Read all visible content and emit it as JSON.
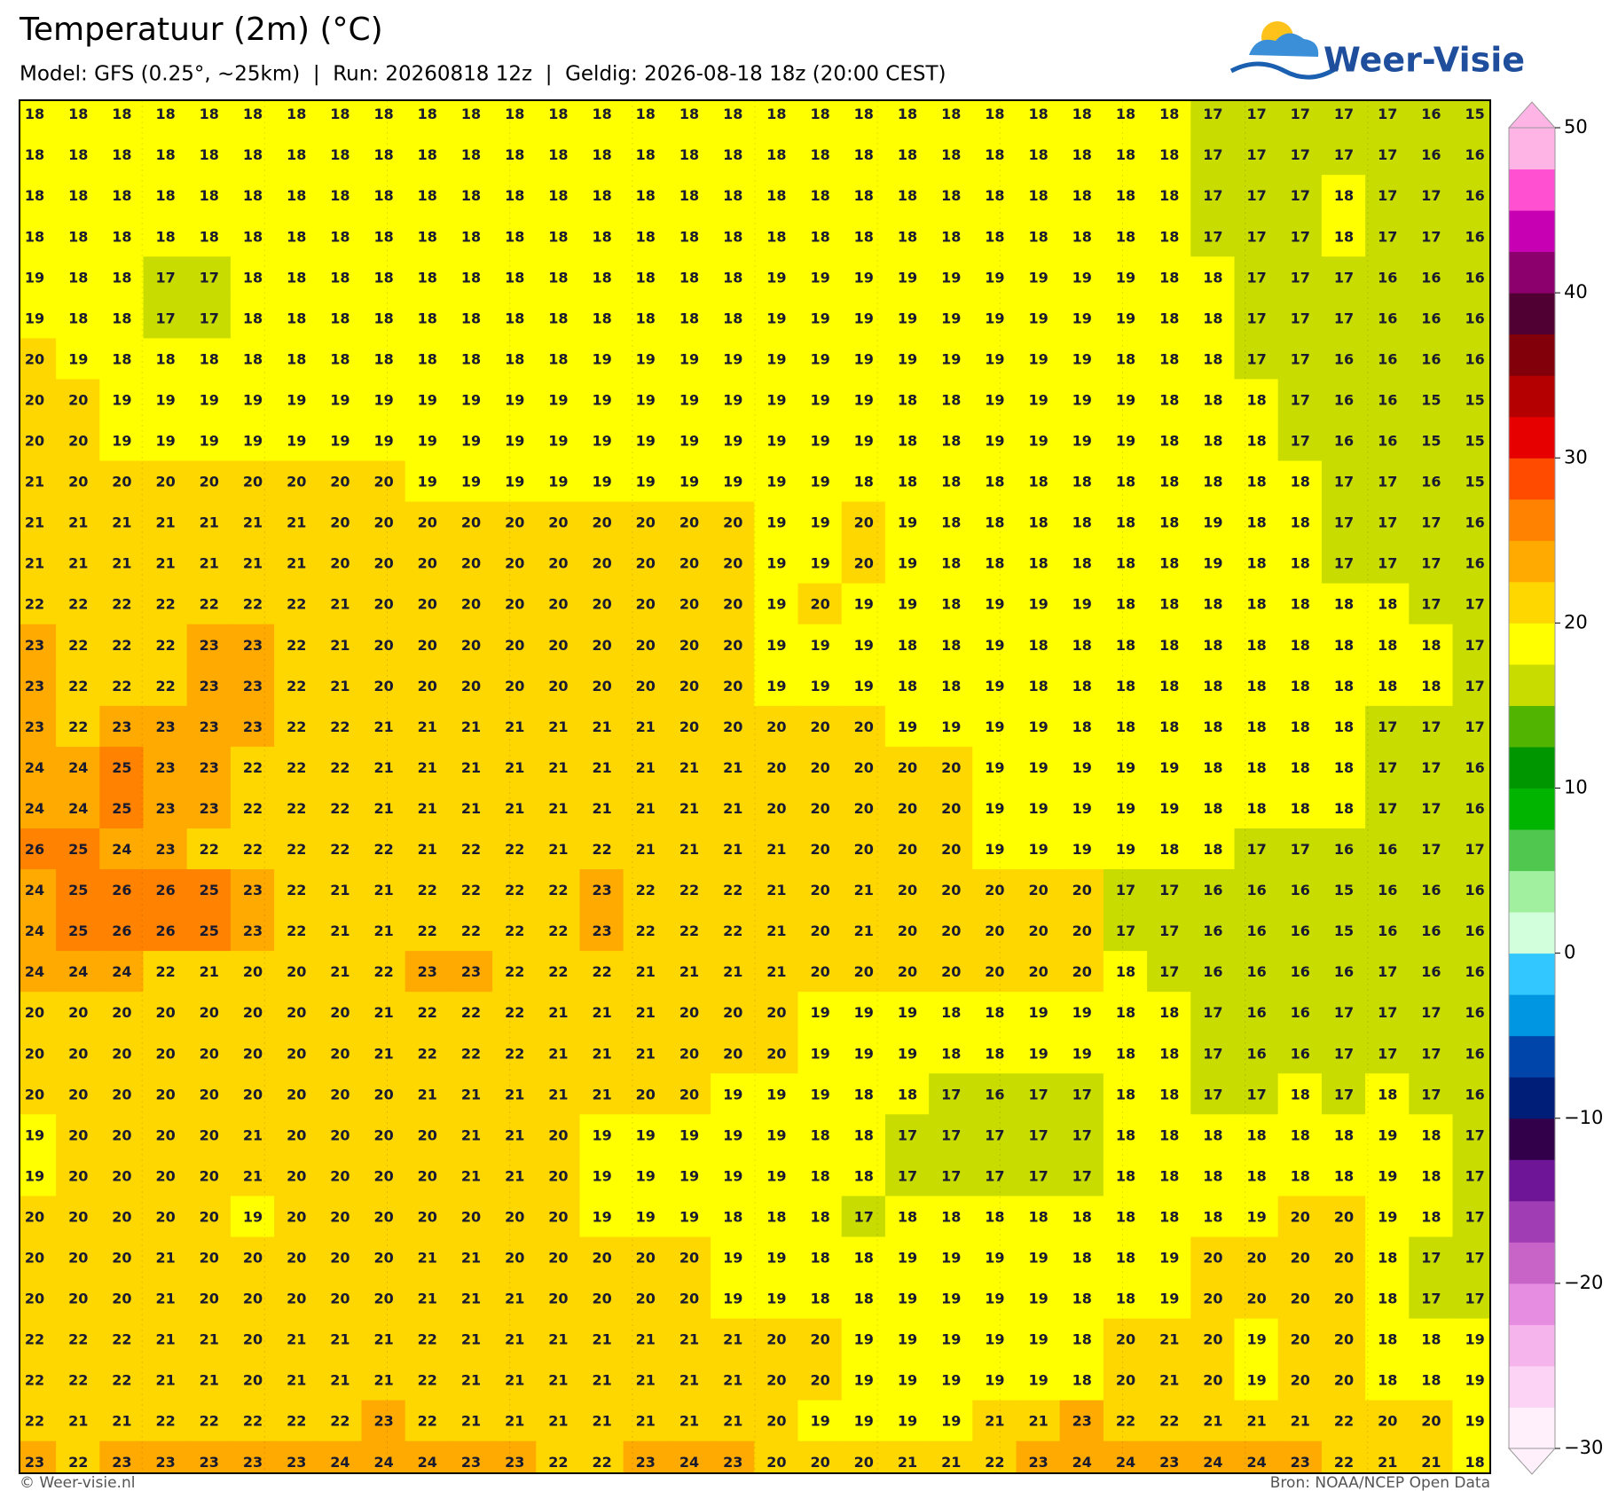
{
  "header": {
    "title": "Temperatuur (2m) (°C)",
    "subtitle": "Model: GFS (0.25°, ~25km)  |  Run: 20260818 12z  |  Geldig: 2026-08-18 18z (20:00 CEST)"
  },
  "logo": {
    "text": "Weer-Visie"
  },
  "map": {
    "grid": [
      [
        18,
        18,
        18,
        18,
        18,
        18,
        18,
        18,
        18,
        18,
        18,
        18,
        18,
        18,
        18,
        18,
        18,
        18,
        18,
        18,
        18,
        18,
        18,
        18,
        18,
        18,
        18,
        17,
        17,
        17,
        17,
        17,
        16,
        15
      ],
      [
        18,
        18,
        18,
        18,
        18,
        18,
        18,
        18,
        18,
        18,
        18,
        18,
        18,
        18,
        18,
        18,
        18,
        18,
        18,
        18,
        18,
        18,
        18,
        18,
        18,
        18,
        18,
        17,
        17,
        17,
        17,
        17,
        16,
        16
      ],
      [
        18,
        18,
        18,
        18,
        18,
        18,
        18,
        18,
        18,
        18,
        18,
        18,
        18,
        18,
        18,
        18,
        18,
        18,
        18,
        18,
        18,
        18,
        18,
        18,
        18,
        18,
        18,
        17,
        17,
        17,
        18,
        17,
        17,
        16
      ],
      [
        18,
        18,
        18,
        18,
        18,
        18,
        18,
        18,
        18,
        18,
        18,
        18,
        18,
        18,
        18,
        18,
        18,
        18,
        18,
        18,
        18,
        18,
        18,
        18,
        18,
        18,
        18,
        17,
        17,
        17,
        18,
        17,
        17,
        16
      ],
      [
        19,
        18,
        18,
        17,
        17,
        18,
        18,
        18,
        18,
        18,
        18,
        18,
        18,
        18,
        18,
        18,
        18,
        19,
        19,
        19,
        19,
        19,
        19,
        19,
        19,
        19,
        18,
        18,
        17,
        17,
        17,
        16,
        16,
        16
      ],
      [
        19,
        18,
        18,
        17,
        17,
        18,
        18,
        18,
        18,
        18,
        18,
        18,
        18,
        18,
        18,
        18,
        18,
        19,
        19,
        19,
        19,
        19,
        19,
        19,
        19,
        19,
        18,
        18,
        17,
        17,
        17,
        16,
        16,
        16
      ],
      [
        20,
        19,
        18,
        18,
        18,
        18,
        18,
        18,
        18,
        18,
        18,
        18,
        18,
        19,
        19,
        19,
        19,
        19,
        19,
        19,
        19,
        19,
        19,
        19,
        19,
        18,
        18,
        18,
        17,
        17,
        16,
        16,
        16,
        16
      ],
      [
        20,
        20,
        19,
        19,
        19,
        19,
        19,
        19,
        19,
        19,
        19,
        19,
        19,
        19,
        19,
        19,
        19,
        19,
        19,
        19,
        18,
        18,
        19,
        19,
        19,
        19,
        18,
        18,
        18,
        17,
        16,
        16,
        15,
        15
      ],
      [
        20,
        20,
        19,
        19,
        19,
        19,
        19,
        19,
        19,
        19,
        19,
        19,
        19,
        19,
        19,
        19,
        19,
        19,
        19,
        19,
        18,
        18,
        19,
        19,
        19,
        19,
        18,
        18,
        18,
        17,
        16,
        16,
        15,
        15
      ],
      [
        21,
        20,
        20,
        20,
        20,
        20,
        20,
        20,
        20,
        19,
        19,
        19,
        19,
        19,
        19,
        19,
        19,
        19,
        19,
        18,
        18,
        18,
        18,
        18,
        18,
        18,
        18,
        18,
        18,
        18,
        17,
        17,
        16,
        15
      ],
      [
        21,
        21,
        21,
        21,
        21,
        21,
        21,
        20,
        20,
        20,
        20,
        20,
        20,
        20,
        20,
        20,
        20,
        19,
        19,
        20,
        19,
        18,
        18,
        18,
        18,
        18,
        18,
        19,
        18,
        18,
        17,
        17,
        17,
        16
      ],
      [
        21,
        21,
        21,
        21,
        21,
        21,
        21,
        20,
        20,
        20,
        20,
        20,
        20,
        20,
        20,
        20,
        20,
        19,
        19,
        20,
        19,
        18,
        18,
        18,
        18,
        18,
        18,
        19,
        18,
        18,
        17,
        17,
        17,
        16
      ],
      [
        22,
        22,
        22,
        22,
        22,
        22,
        22,
        21,
        20,
        20,
        20,
        20,
        20,
        20,
        20,
        20,
        20,
        19,
        20,
        19,
        19,
        18,
        19,
        19,
        19,
        18,
        18,
        18,
        18,
        18,
        18,
        18,
        17,
        17
      ],
      [
        23,
        22,
        22,
        22,
        23,
        23,
        22,
        21,
        20,
        20,
        20,
        20,
        20,
        20,
        20,
        20,
        20,
        19,
        19,
        19,
        18,
        18,
        19,
        18,
        18,
        18,
        18,
        18,
        18,
        18,
        18,
        18,
        18,
        17
      ],
      [
        23,
        22,
        22,
        22,
        23,
        23,
        22,
        21,
        20,
        20,
        20,
        20,
        20,
        20,
        20,
        20,
        20,
        19,
        19,
        19,
        18,
        18,
        19,
        18,
        18,
        18,
        18,
        18,
        18,
        18,
        18,
        18,
        18,
        17
      ],
      [
        23,
        22,
        23,
        23,
        23,
        23,
        22,
        22,
        21,
        21,
        21,
        21,
        21,
        21,
        21,
        20,
        20,
        20,
        20,
        20,
        19,
        19,
        19,
        19,
        18,
        18,
        18,
        18,
        18,
        18,
        18,
        17,
        17,
        17
      ],
      [
        24,
        24,
        25,
        23,
        23,
        22,
        22,
        22,
        21,
        21,
        21,
        21,
        21,
        21,
        21,
        21,
        21,
        20,
        20,
        20,
        20,
        20,
        19,
        19,
        19,
        19,
        19,
        18,
        18,
        18,
        18,
        17,
        17,
        16
      ],
      [
        24,
        24,
        25,
        23,
        23,
        22,
        22,
        22,
        21,
        21,
        21,
        21,
        21,
        21,
        21,
        21,
        21,
        20,
        20,
        20,
        20,
        20,
        19,
        19,
        19,
        19,
        19,
        18,
        18,
        18,
        18,
        17,
        17,
        16
      ],
      [
        26,
        25,
        24,
        23,
        22,
        22,
        22,
        22,
        22,
        21,
        22,
        22,
        21,
        22,
        21,
        21,
        21,
        21,
        20,
        20,
        20,
        20,
        19,
        19,
        19,
        19,
        18,
        18,
        17,
        17,
        16,
        16,
        17,
        17
      ],
      [
        24,
        25,
        26,
        26,
        25,
        23,
        22,
        21,
        21,
        22,
        22,
        22,
        22,
        23,
        22,
        22,
        22,
        21,
        20,
        21,
        20,
        20,
        20,
        20,
        20,
        17,
        17,
        16,
        16,
        16,
        15,
        16,
        16,
        16
      ],
      [
        24,
        25,
        26,
        26,
        25,
        23,
        22,
        21,
        21,
        22,
        22,
        22,
        22,
        23,
        22,
        22,
        22,
        21,
        20,
        21,
        20,
        20,
        20,
        20,
        20,
        17,
        17,
        16,
        16,
        16,
        15,
        16,
        16,
        16
      ],
      [
        24,
        24,
        24,
        22,
        21,
        20,
        20,
        21,
        22,
        23,
        23,
        22,
        22,
        22,
        21,
        21,
        21,
        21,
        20,
        20,
        20,
        20,
        20,
        20,
        20,
        18,
        17,
        16,
        16,
        16,
        16,
        17,
        16,
        16
      ],
      [
        20,
        20,
        20,
        20,
        20,
        20,
        20,
        20,
        21,
        22,
        22,
        22,
        21,
        21,
        21,
        20,
        20,
        20,
        19,
        19,
        19,
        18,
        18,
        19,
        19,
        18,
        18,
        17,
        16,
        16,
        17,
        17,
        17,
        16
      ],
      [
        20,
        20,
        20,
        20,
        20,
        20,
        20,
        20,
        21,
        22,
        22,
        22,
        21,
        21,
        21,
        20,
        20,
        20,
        19,
        19,
        19,
        18,
        18,
        19,
        19,
        18,
        18,
        17,
        16,
        16,
        17,
        17,
        17,
        16
      ],
      [
        20,
        20,
        20,
        20,
        20,
        20,
        20,
        20,
        20,
        21,
        21,
        21,
        21,
        21,
        20,
        20,
        19,
        19,
        19,
        18,
        18,
        17,
        16,
        17,
        17,
        18,
        18,
        17,
        17,
        18,
        17,
        18,
        17,
        16
      ],
      [
        19,
        20,
        20,
        20,
        20,
        21,
        20,
        20,
        20,
        20,
        21,
        21,
        20,
        19,
        19,
        19,
        19,
        19,
        18,
        18,
        17,
        17,
        17,
        17,
        17,
        18,
        18,
        18,
        18,
        18,
        18,
        19,
        18,
        17
      ],
      [
        19,
        20,
        20,
        20,
        20,
        21,
        20,
        20,
        20,
        20,
        21,
        21,
        20,
        19,
        19,
        19,
        19,
        19,
        18,
        18,
        17,
        17,
        17,
        17,
        17,
        18,
        18,
        18,
        18,
        18,
        18,
        19,
        18,
        17
      ],
      [
        20,
        20,
        20,
        20,
        20,
        19,
        20,
        20,
        20,
        20,
        20,
        20,
        20,
        19,
        19,
        19,
        18,
        18,
        18,
        17,
        18,
        18,
        18,
        18,
        18,
        18,
        18,
        18,
        19,
        20,
        20,
        19,
        18,
        17
      ],
      [
        20,
        20,
        20,
        21,
        20,
        20,
        20,
        20,
        20,
        21,
        21,
        20,
        20,
        20,
        20,
        20,
        19,
        19,
        18,
        18,
        19,
        19,
        19,
        19,
        18,
        18,
        19,
        20,
        20,
        20,
        20,
        18,
        17,
        17
      ],
      [
        20,
        20,
        20,
        21,
        20,
        20,
        20,
        20,
        20,
        21,
        21,
        21,
        20,
        20,
        20,
        20,
        19,
        19,
        18,
        18,
        19,
        19,
        19,
        19,
        18,
        18,
        19,
        20,
        20,
        20,
        20,
        18,
        17,
        17
      ],
      [
        22,
        22,
        22,
        21,
        21,
        20,
        21,
        21,
        21,
        22,
        21,
        21,
        21,
        21,
        21,
        21,
        21,
        20,
        20,
        19,
        19,
        19,
        19,
        19,
        18,
        20,
        21,
        20,
        19,
        20,
        20,
        18,
        18,
        19
      ],
      [
        22,
        22,
        22,
        21,
        21,
        20,
        21,
        21,
        21,
        22,
        21,
        21,
        21,
        21,
        21,
        21,
        21,
        20,
        20,
        19,
        19,
        19,
        19,
        19,
        18,
        20,
        21,
        20,
        19,
        20,
        20,
        18,
        18,
        19
      ],
      [
        22,
        21,
        21,
        22,
        22,
        22,
        22,
        22,
        23,
        22,
        21,
        21,
        21,
        21,
        21,
        21,
        21,
        20,
        19,
        19,
        19,
        19,
        21,
        21,
        23,
        22,
        22,
        21,
        21,
        21,
        22,
        20,
        20,
        19
      ],
      [
        23,
        22,
        23,
        23,
        23,
        23,
        23,
        24,
        24,
        24,
        23,
        23,
        22,
        22,
        23,
        24,
        23,
        20,
        20,
        20,
        21,
        21,
        22,
        23,
        24,
        24,
        23,
        24,
        24,
        23,
        22,
        21,
        21,
        18
      ]
    ]
  },
  "colorbar": {
    "lim": [
      -30,
      50
    ],
    "ticks": [
      50,
      40,
      30,
      20,
      10,
      0,
      {
        "value": -10,
        "label": "−10"
      },
      {
        "value": -20,
        "label": "−20"
      },
      {
        "value": -30,
        "label": "−30"
      }
    ],
    "colors": [
      "#fff0fc",
      "#fcd2f5",
      "#f5b4eb",
      "#e68ce1",
      "#c864c8",
      "#a03cb4",
      "#6e1496",
      "#32004b",
      "#001e78",
      "#0046aa",
      "#0096e1",
      "#32c8ff",
      "#d2ffdc",
      "#a0f0a0",
      "#50c850",
      "#00b400",
      "#009600",
      "#50b400",
      "#c8dc00",
      "#ffff00",
      "#ffd700",
      "#ffaa00",
      "#ff8200",
      "#ff4b00",
      "#e60000",
      "#b40000",
      "#82000a",
      "#500032",
      "#8c006e",
      "#c800b4",
      "#ff50d2",
      "#ffb4e6"
    ]
  },
  "footer": {
    "left": "© Weer-visie.nl",
    "right": "Bron: NOAA/NCEP Open Data"
  }
}
